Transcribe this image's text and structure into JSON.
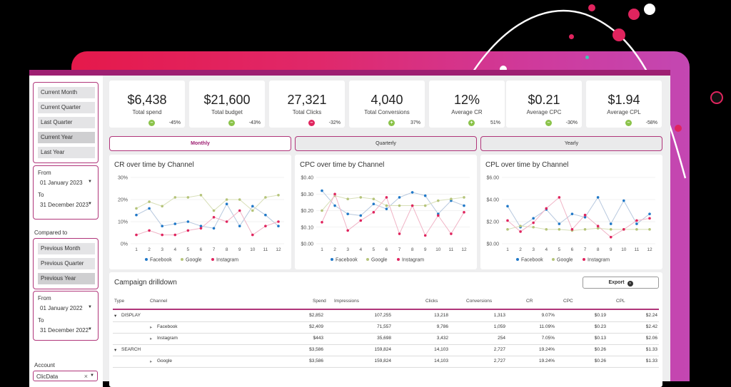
{
  "filters": {
    "periods": [
      "Current Month",
      "Current Quarter",
      "Last Quarter",
      "Current Year",
      "Last Year"
    ],
    "period_selected": "Current Year",
    "from_label": "From",
    "from_value": "01 January 2023",
    "to_label": "To",
    "to_value": "31 December 2023",
    "compared_to_label": "Compared to",
    "compare_options": [
      "Previous Month",
      "Previous Quarter",
      "Previous Year"
    ],
    "compare_selected": "Previous Year",
    "cmp_from_label": "From",
    "cmp_from_value": "01 January 2022",
    "cmp_to_label": "To",
    "cmp_to_value": "31 December 2022",
    "account_label": "Account",
    "account_value": "ClicData"
  },
  "kpis": [
    {
      "value": "$6,438",
      "label": "Total spend",
      "change": "-45%",
      "dir": "down"
    },
    {
      "value": "$21,600",
      "label": "Total budget",
      "change": "-43%",
      "dir": "down"
    },
    {
      "value": "27,321",
      "label": "Total Clicks",
      "change": "-32%",
      "dir": "neg"
    },
    {
      "value": "4,040",
      "label": "Total Conversions",
      "change": "37%",
      "dir": "up"
    },
    {
      "value": "12%",
      "label": "Average CR",
      "change": "51%",
      "dir": "up"
    },
    {
      "value": "$0.21",
      "label": "Average CPC",
      "change": "-30%",
      "dir": "down"
    },
    {
      "value": "$1.94",
      "label": "Average CPL",
      "change": "-58%",
      "dir": "down"
    }
  ],
  "tabs": [
    "Monthly",
    "Quarterly",
    "Yearly"
  ],
  "active_tab": "Monthly",
  "colors": {
    "facebook": "#1f78c8",
    "google": "#b5c47a",
    "instagram": "#e0245e",
    "accent": "#9e1f72"
  },
  "chart_data": [
    {
      "type": "line",
      "title": "CR over time by Channel",
      "x": [
        1,
        2,
        3,
        4,
        5,
        6,
        7,
        8,
        9,
        10,
        11,
        12
      ],
      "yticks": [
        "0%",
        "10%",
        "20%",
        "30%"
      ],
      "ylim": [
        0,
        30
      ],
      "series": [
        {
          "name": "Facebook",
          "values": [
            13,
            16,
            8,
            9,
            10,
            8,
            7,
            18,
            8,
            17,
            13,
            8
          ]
        },
        {
          "name": "Google",
          "values": [
            16,
            19,
            17,
            21,
            21,
            22,
            15,
            20,
            20,
            15,
            21,
            22
          ]
        },
        {
          "name": "Instagram",
          "values": [
            4,
            6,
            4,
            4,
            6,
            7,
            12,
            10,
            15,
            4,
            8,
            10
          ]
        }
      ]
    },
    {
      "type": "line",
      "title": "CPC over time by Channel",
      "x": [
        1,
        2,
        3,
        4,
        5,
        6,
        7,
        8,
        9,
        10,
        11,
        12
      ],
      "yticks": [
        "$0.00",
        "$0.10",
        "$0.20",
        "$0.30",
        "$0.40"
      ],
      "ylim": [
        0,
        0.4
      ],
      "series": [
        {
          "name": "Facebook",
          "values": [
            0.32,
            0.23,
            0.18,
            0.17,
            0.24,
            0.21,
            0.28,
            0.31,
            0.29,
            0.18,
            0.26,
            0.23
          ]
        },
        {
          "name": "Google",
          "values": [
            0.2,
            0.29,
            0.27,
            0.28,
            0.27,
            0.23,
            0.23,
            0.23,
            0.23,
            0.26,
            0.27,
            0.28
          ]
        },
        {
          "name": "Instagram",
          "values": [
            0.13,
            0.3,
            0.08,
            0.14,
            0.19,
            0.28,
            0.06,
            0.23,
            0.05,
            0.17,
            0.06,
            0.19
          ]
        }
      ]
    },
    {
      "type": "line",
      "title": "CPL over time by Channel",
      "x": [
        1,
        2,
        3,
        4,
        5,
        6,
        7,
        8,
        9,
        10,
        11,
        12
      ],
      "yticks": [
        "$0.00",
        "$2.00",
        "$4.00",
        "$6.00"
      ],
      "ylim": [
        0,
        6
      ],
      "series": [
        {
          "name": "Facebook",
          "values": [
            3.4,
            1.5,
            2.3,
            3.1,
            1.8,
            2.7,
            2.4,
            4.2,
            1.8,
            3.9,
            1.8,
            2.7
          ]
        },
        {
          "name": "Google",
          "values": [
            1.3,
            1.6,
            1.5,
            1.3,
            1.3,
            1.2,
            1.3,
            1.4,
            1.3,
            1.3,
            1.3,
            1.3
          ]
        },
        {
          "name": "Instagram",
          "values": [
            2.1,
            1.1,
            1.9,
            3.2,
            4.2,
            1.3,
            2.6,
            1.6,
            0.6,
            1.3,
            2.1,
            2.3
          ]
        }
      ]
    }
  ],
  "drilldown": {
    "title": "Campaign drilldown",
    "export_label": "Export",
    "columns": [
      "Type",
      "Channel",
      "Spend",
      "Impressions",
      "Clicks",
      "Conversions",
      "CR",
      "CPC",
      "CPL"
    ],
    "rows": [
      {
        "type": "DISPLAY",
        "channel": "",
        "spend": "$2,852",
        "impressions": "107,255",
        "clicks": "13,218",
        "conversions": "1,313",
        "cr": "9.07%",
        "cpc": "$0.19",
        "cpl": "$2.24",
        "level": 0
      },
      {
        "type": "",
        "channel": "Facebook",
        "spend": "$2,409",
        "impressions": "71,557",
        "clicks": "9,786",
        "conversions": "1,059",
        "cr": "11.09%",
        "cpc": "$0.23",
        "cpl": "$2.42",
        "level": 1
      },
      {
        "type": "",
        "channel": "Instagram",
        "spend": "$443",
        "impressions": "35,698",
        "clicks": "3,432",
        "conversions": "254",
        "cr": "7.05%",
        "cpc": "$0.13",
        "cpl": "$2.06",
        "level": 1
      },
      {
        "type": "SEARCH",
        "channel": "",
        "spend": "$3,586",
        "impressions": "159,824",
        "clicks": "14,103",
        "conversions": "2,727",
        "cr": "19.24%",
        "cpc": "$0.26",
        "cpl": "$1.33",
        "level": 0
      },
      {
        "type": "",
        "channel": "Google",
        "spend": "$3,586",
        "impressions": "159,824",
        "clicks": "14,103",
        "conversions": "2,727",
        "cr": "19.24%",
        "cpc": "$0.26",
        "cpl": "$1.33",
        "level": 1
      }
    ]
  }
}
